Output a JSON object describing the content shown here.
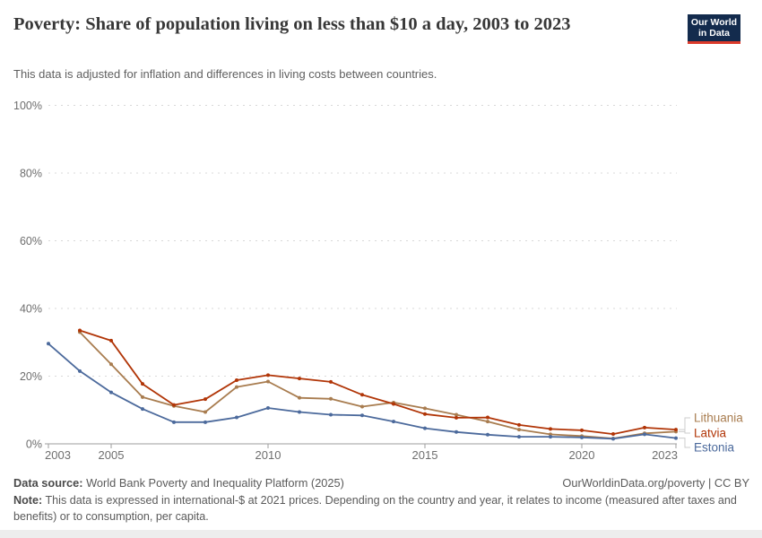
{
  "header": {
    "title": "Poverty: Share of population living on less than $10 a day, 2003 to 2023",
    "subtitle": "This data is adjusted for inflation and differences in living costs between countries.",
    "logo": {
      "line1": "Our World",
      "line2": "in Data"
    }
  },
  "chart_data": {
    "type": "line",
    "title": "Poverty: Share of population living on less than $10 a day, 2003 to 2023",
    "x": [
      2003,
      2004,
      2005,
      2006,
      2007,
      2008,
      2009,
      2010,
      2011,
      2012,
      2013,
      2014,
      2015,
      2016,
      2017,
      2018,
      2019,
      2020,
      2021,
      2022,
      2023
    ],
    "series": [
      {
        "name": "Lithuania",
        "color": "#A87C4F",
        "values": [
          null,
          33.0,
          23.5,
          13.8,
          11.2,
          9.4,
          16.8,
          18.4,
          13.6,
          13.3,
          11.0,
          12.2,
          10.5,
          8.6,
          6.6,
          4.2,
          2.8,
          2.3,
          1.6,
          3.1,
          3.6
        ]
      },
      {
        "name": "Latvia",
        "color": "#B13507",
        "values": [
          null,
          33.5,
          30.5,
          17.7,
          11.5,
          13.2,
          18.8,
          20.3,
          19.3,
          18.3,
          14.5,
          11.8,
          8.8,
          7.7,
          7.8,
          5.6,
          4.4,
          4.0,
          2.9,
          4.8,
          4.2
        ]
      },
      {
        "name": "Estonia",
        "color": "#4C6A9C",
        "values": [
          29.6,
          21.5,
          15.2,
          10.3,
          6.4,
          6.4,
          7.8,
          10.6,
          9.4,
          8.6,
          8.4,
          6.6,
          4.6,
          3.5,
          2.7,
          2.1,
          2.1,
          1.9,
          1.5,
          2.8,
          1.7
        ]
      }
    ],
    "ylim": [
      0,
      100
    ],
    "yticks": [
      {
        "v": 0,
        "label": "0%"
      },
      {
        "v": 20,
        "label": "20%"
      },
      {
        "v": 40,
        "label": "40%"
      },
      {
        "v": 60,
        "label": "60%"
      },
      {
        "v": 80,
        "label": "80%"
      },
      {
        "v": 100,
        "label": "100%"
      }
    ],
    "xticks": [
      {
        "v": 2003,
        "label": "2003"
      },
      {
        "v": 2005,
        "label": "2005"
      },
      {
        "v": 2010,
        "label": "2010"
      },
      {
        "v": 2015,
        "label": "2015"
      },
      {
        "v": 2020,
        "label": "2020"
      },
      {
        "v": 2023,
        "label": "2023"
      }
    ],
    "grid": "horizontal-dashed",
    "legend_position": "right-end-labels"
  },
  "footer": {
    "datasource_label": "Data source:",
    "datasource_value": " World Bank Poverty and Inequality Platform (2025)",
    "credit": "OurWorldinData.org/poverty | CC BY",
    "note_label": "Note:",
    "note_value": " This data is expressed in international-$ at 2021 prices. Depending on the country and year, it relates to income (measured after taxes and benefits) or to consumption, per capita."
  }
}
